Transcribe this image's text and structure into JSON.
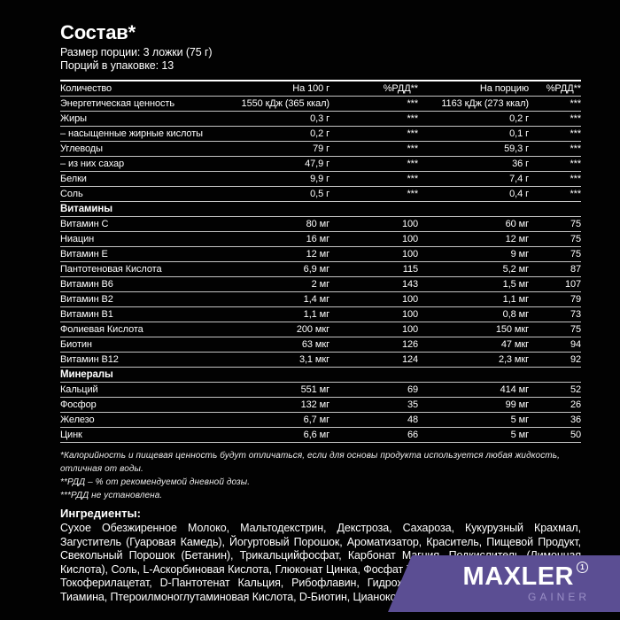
{
  "header": {
    "title": "Состав*",
    "serving_size": "Размер порции: 3 ложки (75 г)",
    "servings_per_pack": "Порций в упаковке: 13"
  },
  "table": {
    "columns": [
      "Количество",
      "На 100 г",
      "%РДД**",
      "На порцию",
      "%РДД**"
    ],
    "sections": [
      {
        "name": "",
        "rows": [
          [
            "Энергетическая ценность",
            "1550 кДж (365 ккал)",
            "***",
            "1163 кДж (273 ккал)",
            "***"
          ],
          [
            "Жиры",
            "0,3 г",
            "***",
            "0,2 г",
            "***"
          ],
          [
            "– насыщенные жирные кислоты",
            "0,2 г",
            "***",
            "0,1 г",
            "***"
          ],
          [
            "Углеводы",
            "79 г",
            "***",
            "59,3 г",
            "***"
          ],
          [
            "– из них сахар",
            "47,9 г",
            "***",
            "36 г",
            "***"
          ],
          [
            "Белки",
            "9,9 г",
            "***",
            "7,4 г",
            "***"
          ],
          [
            "Соль",
            "0,5 г",
            "***",
            "0,4 г",
            "***"
          ]
        ]
      },
      {
        "name": "Витамины",
        "rows": [
          [
            "Витамин C",
            "80 мг",
            "100",
            "60 мг",
            "75"
          ],
          [
            "Ниацин",
            "16 мг",
            "100",
            "12 мг",
            "75"
          ],
          [
            "Витамин E",
            "12 мг",
            "100",
            "9 мг",
            "75"
          ],
          [
            "Пантотеновая Кислота",
            "6,9 мг",
            "115",
            "5,2 мг",
            "87"
          ],
          [
            "Витамин B6",
            "2 мг",
            "143",
            "1,5 мг",
            "107"
          ],
          [
            "Витамин B2",
            "1,4 мг",
            "100",
            "1,1 мг",
            "79"
          ],
          [
            "Витамин B1",
            "1,1 мг",
            "100",
            "0,8 мг",
            "73"
          ],
          [
            "Фолиевая Кислота",
            "200 мкг",
            "100",
            "150 мкг",
            "75"
          ],
          [
            "Биотин",
            "63 мкг",
            "126",
            "47 мкг",
            "94"
          ],
          [
            "Витамин B12",
            "3,1 мкг",
            "124",
            "2,3 мкг",
            "92"
          ]
        ]
      },
      {
        "name": "Минералы",
        "rows": [
          [
            "Кальций",
            "551 мг",
            "69",
            "414 мг",
            "52"
          ],
          [
            "Фосфор",
            "132 мг",
            "35",
            "99 мг",
            "26"
          ],
          [
            "Железо",
            "6,7 мг",
            "48",
            "5 мг",
            "36"
          ],
          [
            "Цинк",
            "6,6 мг",
            "66",
            "5 мг",
            "50"
          ]
        ]
      }
    ]
  },
  "footnotes": [
    "*Калорийность и пищевая ценность будут отличаться, если для основы продукта используется любая жидкость, отличная от воды.",
    "**РДД – % от рекомендуемой дневной дозы.",
    "***РДД не установлена."
  ],
  "ingredients": {
    "heading": "Ингредиенты:",
    "text": "Сухое Обезжиренное Молоко, Мальтодекстрин, Декстроза, Сахароза, Кукурузный Крахмал, Загуститель (Гуаровая Камедь), Йогуртовый Порошок, Ароматизатор, Краситель, Пищевой Продукт, Свекольный Порошок (Бетанин), Трикальцийфосфат, Карбонат Магния, Подкислитель (Лимонная Кислота), Соль, L-Аскорбиновая Кислота, Глюконат Цинка, Фосфат Железа, Никотинамид, DL-Альфа-Токоферилацетат, D-Пантотенат Кальция, Рибофлавин, Гидрохлорид Пиридоксина, Мононитрат Тиамина, Птероилмоноглутаминовая Кислота, D-Биотин, Цианокобаламин."
  },
  "logo": {
    "brand": "MAXLER",
    "mark": "1",
    "subbrand": "GAINER"
  },
  "colors": {
    "background": "#020202",
    "text": "#ffffff",
    "rule": "#c4c4c4",
    "logo_purple": "#5b4e93",
    "logo_sub_text": "#9a8fc6"
  }
}
